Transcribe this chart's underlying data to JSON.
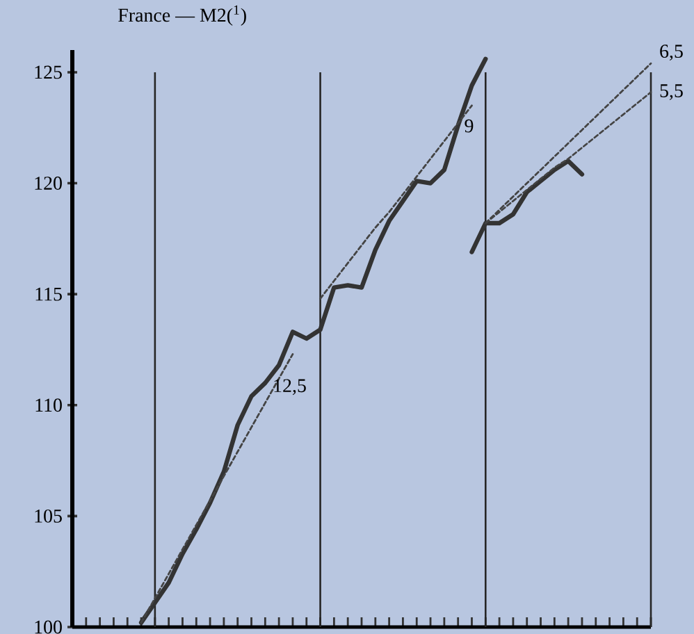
{
  "chart_data": {
    "type": "line",
    "title": "France — M2($^{1}$)",
    "categories": [
      null,
      null,
      null,
      null,
      null,
      null,
      null,
      null,
      null,
      null,
      null,
      null,
      null,
      null,
      null,
      null,
      null,
      null,
      null,
      null,
      null,
      null,
      null,
      null,
      null,
      null,
      null,
      null,
      null,
      null,
      null,
      null,
      null,
      null,
      null,
      null,
      null,
      null,
      null,
      null,
      null,
      null,
      null
    ],
    "ylim": [
      100,
      126
    ],
    "yticks": [
      100,
      105,
      110,
      115,
      120,
      125
    ],
    "marker": "none",
    "grid": "x",
    "series": [
      {
        "color": "#333333",
        "line_style": "solid",
        "values": [
          null,
          null,
          null,
          null,
          null,
          100.2,
          101.1,
          102.0,
          103.3,
          104.4,
          105.6,
          107.0,
          109.1,
          110.4,
          111.0,
          111.8,
          113.3,
          113.0,
          113.4,
          115.3,
          115.4,
          115.3,
          117.0,
          118.3,
          119.2,
          120.1,
          120.0,
          120.6,
          122.6,
          124.4,
          125.6,
          null,
          null,
          null,
          null,
          null,
          null,
          null,
          null,
          null,
          null,
          null,
          null
        ]
      },
      {
        "color": "#333333",
        "line_style": "solid",
        "values": [
          null,
          null,
          null,
          null,
          null,
          null,
          null,
          null,
          null,
          null,
          null,
          null,
          null,
          null,
          null,
          null,
          null,
          null,
          null,
          null,
          null,
          null,
          null,
          null,
          null,
          null,
          null,
          null,
          null,
          116.9,
          118.2,
          118.2,
          118.6,
          119.6,
          120.1,
          120.6,
          121.0,
          120.4,
          null,
          null,
          null,
          null,
          null
        ]
      },
      {
        "name": "12,5",
        "color": "#444444",
        "line_style": "dashed",
        "values": [
          null,
          null,
          null,
          null,
          null,
          100.2,
          101.3,
          102.4,
          103.5,
          104.6,
          105.7,
          106.8,
          107.9,
          109.0,
          110.1,
          111.2,
          112.3,
          null,
          null,
          null,
          null,
          null,
          null,
          null,
          null,
          null,
          null,
          null,
          null,
          null,
          null,
          null,
          null,
          null,
          null,
          null,
          null,
          null,
          null,
          null,
          null,
          null,
          null
        ]
      },
      {
        "name": "9",
        "color": "#444444",
        "line_style": "dashed",
        "values": [
          null,
          null,
          null,
          null,
          null,
          null,
          null,
          null,
          null,
          null,
          null,
          null,
          null,
          null,
          null,
          null,
          null,
          null,
          114.8,
          115.6,
          116.4,
          117.2,
          118.0,
          118.7,
          119.5,
          120.3,
          121.1,
          121.9,
          122.7,
          123.5,
          null,
          null,
          null,
          null,
          null,
          null,
          null,
          null,
          null,
          null,
          null,
          null,
          null
        ]
      },
      {
        "name": "6,5",
        "color": "#444444",
        "line_style": "dashed",
        "values": [
          null,
          null,
          null,
          null,
          null,
          null,
          null,
          null,
          null,
          null,
          null,
          null,
          null,
          null,
          null,
          null,
          null,
          null,
          null,
          null,
          null,
          null,
          null,
          null,
          null,
          null,
          null,
          null,
          null,
          null,
          118.2,
          118.8,
          119.4,
          120.0,
          120.6,
          121.2,
          121.8,
          122.4,
          123.0,
          123.6,
          124.2,
          124.8,
          125.4
        ]
      },
      {
        "name": "5,5",
        "color": "#444444",
        "line_style": "dashed",
        "values": [
          null,
          null,
          null,
          null,
          null,
          null,
          null,
          null,
          null,
          null,
          null,
          null,
          null,
          null,
          null,
          null,
          null,
          null,
          null,
          null,
          null,
          null,
          null,
          null,
          null,
          null,
          null,
          null,
          null,
          null,
          118.2,
          118.7,
          119.2,
          119.7,
          120.2,
          120.7,
          121.1,
          121.6,
          122.1,
          122.6,
          123.1,
          123.6,
          124.1
        ]
      }
    ]
  }
}
